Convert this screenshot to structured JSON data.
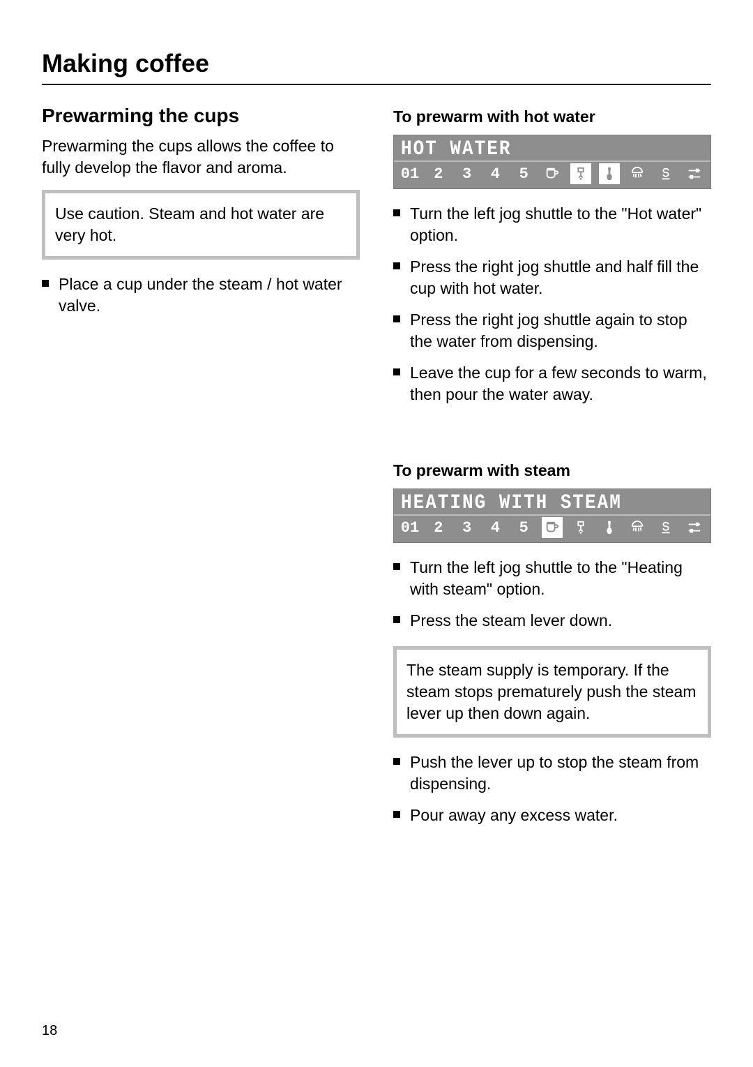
{
  "page": {
    "title": "Making coffee",
    "number": "18"
  },
  "left": {
    "h2": "Prewarming the cups",
    "intro": "Prewarming the cups allows the coffee to fully develop the flavor and aroma.",
    "caution": "Use caution. Steam and hot water are very hot.",
    "steps": [
      "Place a cup under the steam / hot water valve."
    ]
  },
  "right": {
    "hotwater": {
      "h3": "To prewarm with hot water",
      "display_label": "HOT WATER",
      "slots": [
        "01",
        "2",
        "3",
        "4",
        "5",
        "cup",
        "valve",
        "steam",
        "shower",
        "s",
        "settings"
      ],
      "selected": [
        "valve",
        "steam"
      ],
      "steps": [
        "Turn the left jog shuttle to the \"Hot water\" option.",
        "Press the right jog shuttle and half fill the cup with hot water.",
        "Press the right jog shuttle again to stop the water from dispensing.",
        "Leave the cup for a few seconds to warm, then pour the water away."
      ]
    },
    "steam": {
      "h3": "To prewarm with steam",
      "display_label": "HEATING WITH STEAM",
      "slots": [
        "01",
        "2",
        "3",
        "4",
        "5",
        "cup",
        "valve",
        "steam",
        "shower",
        "s",
        "settings"
      ],
      "selected": [
        "cup"
      ],
      "steps_a": [
        "Turn the left jog shuttle to the \"Heating with steam\" option.",
        "Press the steam lever down."
      ],
      "note": "The steam supply is temporary. If the steam stops prematurely push the steam lever up then down again.",
      "steps_b": [
        "Push the lever up to stop the steam from dispensing.",
        "Pour away any excess water."
      ]
    }
  },
  "style": {
    "panel_bg": "#8e8e8e",
    "panel_fg": "#ffffff",
    "note_border": "#bfbfbf",
    "text_color": "#000000"
  }
}
